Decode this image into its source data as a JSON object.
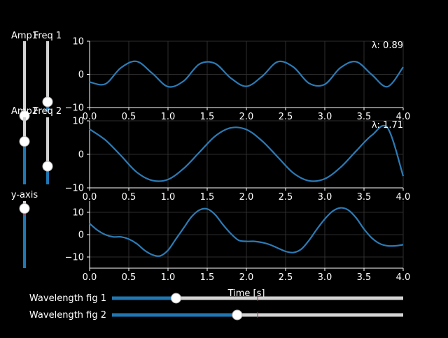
{
  "colors": {
    "background": "#000000",
    "line": "#2c7bb6",
    "slider_fill": "#1f77b4",
    "slider_track": "#d3d3d3",
    "grid": "#3a3a3a",
    "valinit_marker": "#d62728",
    "text": "#ffffff"
  },
  "vertical_sliders": [
    {
      "label": "Amp1",
      "value_fraction": 0.41
    },
    {
      "label": "Freq 1",
      "value_fraction": 0.14
    },
    {
      "label": "Amp2",
      "value_fraction": 0.64
    },
    {
      "label": "Freq 2",
      "value_fraction": 0.27
    },
    {
      "label": "y-axis",
      "value_fraction": 0.89
    }
  ],
  "horizontal_sliders": [
    {
      "label": "Wavelength fig 1",
      "value_fraction": 0.22
    },
    {
      "label": "Wavelength fig 2",
      "value_fraction": 0.43
    }
  ],
  "xlabel": "Time [s]",
  "chart_data": [
    {
      "type": "line",
      "annotation": "λ: 0.89",
      "xlim": [
        0,
        4
      ],
      "ylim": [
        -10,
        10
      ],
      "xticks": [
        "0.0",
        "0.5",
        "1.0",
        "1.5",
        "2.0",
        "2.5",
        "3.0",
        "3.5",
        "4.0"
      ],
      "yticks": [
        "10",
        "0",
        "−10"
      ],
      "ytick_values": [
        10,
        0,
        -10
      ],
      "grid": true,
      "x": [
        0.0,
        0.2,
        0.4,
        0.6,
        0.8,
        1.0,
        1.2,
        1.4,
        1.6,
        1.8,
        2.0,
        2.2,
        2.4,
        2.6,
        2.8,
        3.0,
        3.2,
        3.4,
        3.6,
        3.8,
        4.0
      ],
      "y": [
        -2.3,
        -2.9,
        2.0,
        3.9,
        0.3,
        -3.7,
        -2.0,
        3.1,
        3.3,
        -1.1,
        -3.6,
        -0.6,
        3.8,
        2.2,
        -2.7,
        -3.0,
        2.0,
        3.8,
        -0.1,
        -3.7,
        2.2
      ]
    },
    {
      "type": "line",
      "annotation": "λ: 1.71",
      "xlim": [
        0,
        4
      ],
      "ylim": [
        -10,
        10
      ],
      "xticks": [
        "0.0",
        "0.5",
        "1.0",
        "1.5",
        "2.0",
        "2.5",
        "3.0",
        "3.5",
        "4.0"
      ],
      "yticks": [
        "10",
        "0",
        "−10"
      ],
      "ytick_values": [
        10,
        0,
        -10
      ],
      "grid": true,
      "x": [
        0.0,
        0.2,
        0.4,
        0.6,
        0.8,
        1.0,
        1.2,
        1.4,
        1.6,
        1.8,
        2.0,
        2.2,
        2.4,
        2.6,
        2.8,
        3.0,
        3.2,
        3.4,
        3.6,
        3.8,
        4.0
      ],
      "y": [
        7.5,
        4.3,
        -0.4,
        -5.3,
        -7.8,
        -7.5,
        -4.2,
        0.6,
        5.4,
        7.9,
        7.4,
        4.0,
        -0.8,
        -5.6,
        -7.9,
        -7.3,
        -3.9,
        1.0,
        5.7,
        7.9,
        -6.5
      ]
    },
    {
      "type": "line",
      "xlim": [
        0,
        4
      ],
      "ylim": [
        -15,
        15
      ],
      "xticks": [
        "0.0",
        "0.5",
        "1.0",
        "1.5",
        "2.0",
        "2.5",
        "3.0",
        "3.5",
        "4.0"
      ],
      "yticks": [
        "10",
        "0",
        "−10"
      ],
      "ytick_values": [
        10,
        0,
        -10
      ],
      "grid": true,
      "x": [
        0.0,
        0.1,
        0.2,
        0.3,
        0.4,
        0.5,
        0.6,
        0.7,
        0.8,
        0.9,
        1.0,
        1.1,
        1.2,
        1.3,
        1.4,
        1.5,
        1.6,
        1.7,
        1.8,
        1.9,
        2.0,
        2.1,
        2.2,
        2.3,
        2.4,
        2.5,
        2.6,
        2.7,
        2.8,
        2.9,
        3.0,
        3.1,
        3.2,
        3.3,
        3.4,
        3.5,
        3.6,
        3.7,
        3.8,
        3.9,
        4.0
      ],
      "y": [
        5.0,
        2.0,
        0.0,
        -1.0,
        -1.0,
        -2.0,
        -4.0,
        -7.0,
        -9.0,
        -9.5,
        -7.0,
        -2.0,
        3.0,
        8.0,
        11.0,
        11.5,
        9.0,
        4.5,
        0.5,
        -2.5,
        -3.0,
        -3.0,
        -3.5,
        -4.5,
        -6.0,
        -7.5,
        -8.0,
        -6.5,
        -2.5,
        2.5,
        7.0,
        10.5,
        12.0,
        11.0,
        7.5,
        2.5,
        -1.5,
        -4.0,
        -5.0,
        -5.0,
        -4.5
      ]
    }
  ]
}
